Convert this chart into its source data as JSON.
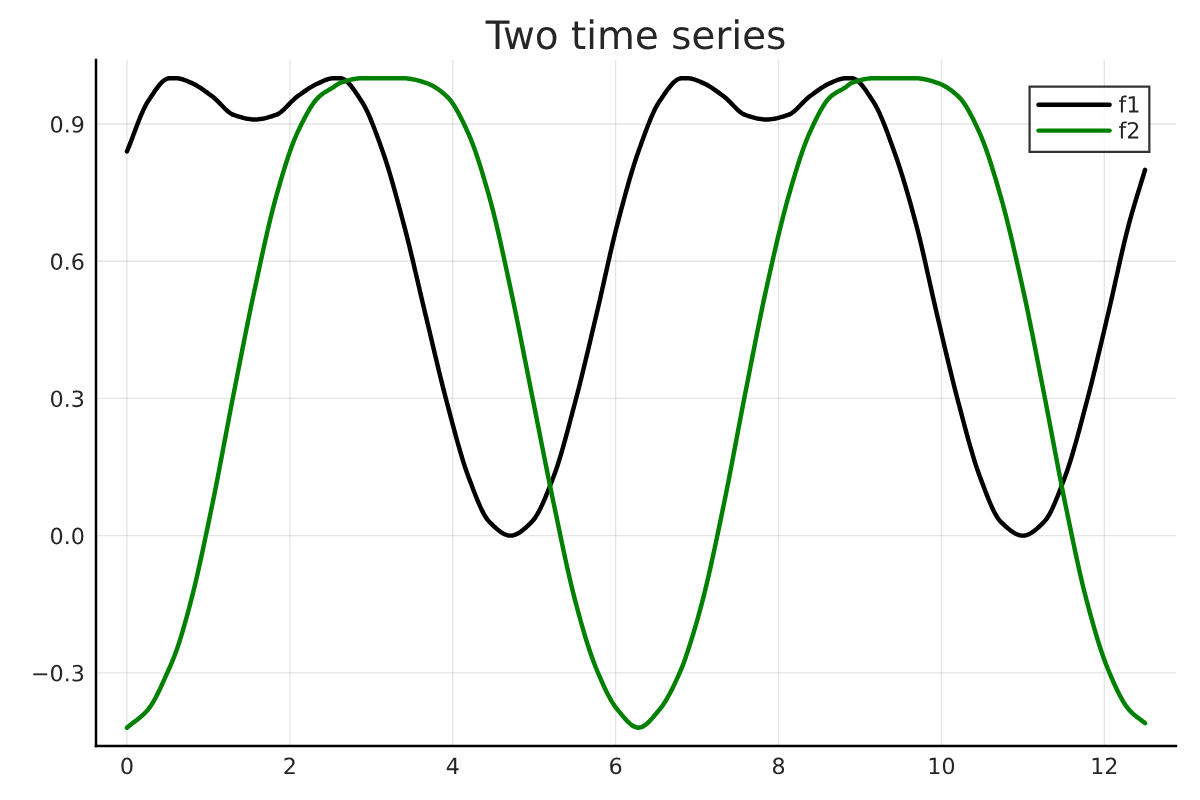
{
  "chart_data": {
    "type": "line",
    "title": "Two time series",
    "x": [
      0,
      0.26,
      0.52,
      0.61,
      0.79,
      1.05,
      1.31,
      1.57,
      1.83,
      2.09,
      2.36,
      2.53,
      2.62,
      2.88,
      3.14,
      3.4,
      3.67,
      3.93,
      4.19,
      4.45,
      4.71,
      4.97,
      5.24,
      5.5,
      5.76,
      6.02,
      6.28,
      6.54,
      6.81,
      6.89,
      7.07,
      7.33,
      7.59,
      7.85,
      8.12,
      8.38,
      8.64,
      8.82,
      8.9,
      9.16,
      9.42,
      9.69,
      9.95,
      10.21,
      10.47,
      10.73,
      11.0,
      11.26,
      11.52,
      11.78,
      12.04,
      12.3,
      12.5
    ],
    "series": [
      {
        "name": "f1",
        "color": "#000000",
        "values": [
          0.84,
          0.95,
          1.0,
          1.0,
          0.99,
          0.96,
          0.92,
          0.91,
          0.92,
          0.96,
          0.99,
          1.0,
          1.0,
          0.95,
          0.84,
          0.68,
          0.48,
          0.29,
          0.13,
          0.03,
          0.0,
          0.03,
          0.13,
          0.29,
          0.48,
          0.68,
          0.84,
          0.95,
          1.0,
          1.0,
          0.99,
          0.96,
          0.92,
          0.91,
          0.92,
          0.96,
          0.99,
          1.0,
          1.0,
          0.95,
          0.84,
          0.68,
          0.48,
          0.29,
          0.13,
          0.03,
          0.0,
          0.03,
          0.13,
          0.29,
          0.48,
          0.68,
          0.8
        ]
      },
      {
        "name": "f2",
        "color": "#008000",
        "values": [
          -0.42,
          -0.38,
          -0.29,
          -0.25,
          -0.14,
          0.07,
          0.31,
          0.54,
          0.74,
          0.88,
          0.96,
          0.98,
          0.99,
          1.0,
          1.0,
          1.0,
          0.99,
          0.96,
          0.88,
          0.74,
          0.54,
          0.31,
          0.07,
          -0.14,
          -0.29,
          -0.38,
          -0.42,
          -0.38,
          -0.29,
          -0.25,
          -0.14,
          0.07,
          0.31,
          0.54,
          0.74,
          0.88,
          0.96,
          0.98,
          0.99,
          1.0,
          1.0,
          1.0,
          0.99,
          0.96,
          0.88,
          0.74,
          0.54,
          0.31,
          0.07,
          -0.14,
          -0.29,
          -0.38,
          -0.41
        ]
      }
    ],
    "xlim": [
      -0.38,
      12.88
    ],
    "xticks": [
      0,
      2,
      4,
      6,
      8,
      10,
      12
    ],
    "ylim": [
      -0.46,
      1.04
    ],
    "yticks": [
      {
        "value": -0.3,
        "label": "−0.3"
      },
      {
        "value": 0,
        "label": "0.0"
      },
      {
        "value": 0.3,
        "label": "0.3"
      },
      {
        "value": 0.6,
        "label": "0.6"
      },
      {
        "value": 0.9,
        "label": "0.9"
      }
    ],
    "grid": true,
    "legend": "top right",
    "line_style": "solid"
  }
}
